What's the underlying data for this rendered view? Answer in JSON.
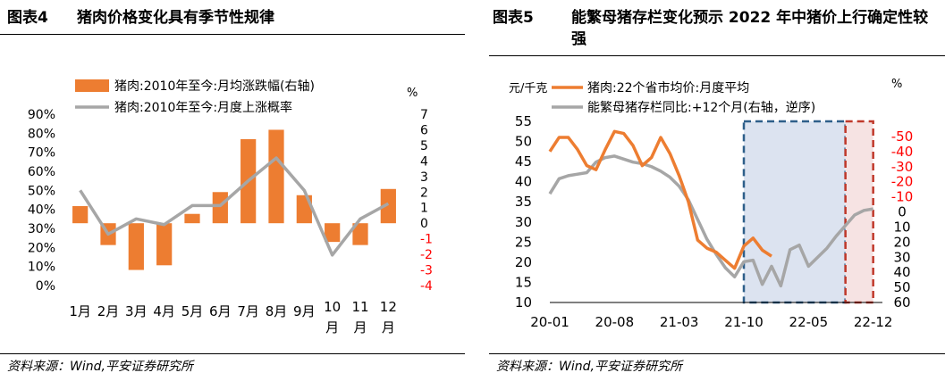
{
  "left": {
    "fig_label": "图表4",
    "title": "猪肉价格变化具有季节性规律",
    "source": "资料来源：Wind,平安证券研究所",
    "chart_data": {
      "type": "bar",
      "categories": [
        "1月",
        "2月",
        "3月",
        "4月",
        "5月",
        "6月",
        "7月",
        "8月",
        "9月",
        "10月",
        "11月",
        "12月"
      ],
      "series": [
        {
          "name": "猪肉:2010年至今:月均涨跌幅(右轴)",
          "type": "bar",
          "axis": "right",
          "color": "#ED7D31",
          "values": [
            1.1,
            -1.4,
            -3.0,
            -2.7,
            0.6,
            2.0,
            5.4,
            6.0,
            1.8,
            -1.2,
            -1.4,
            2.2
          ]
        },
        {
          "name": "猪肉:2010年至今:月度上涨概率",
          "type": "line",
          "axis": "left",
          "color": "#A6A6A6",
          "values": [
            50,
            27,
            35,
            32,
            42,
            42,
            55,
            67,
            50,
            16,
            35,
            43
          ]
        }
      ],
      "left_axis": {
        "min": 0,
        "max": 90,
        "step": 10,
        "format": "percent",
        "ticks": [
          "0%",
          "10%",
          "20%",
          "30%",
          "40%",
          "50%",
          "60%",
          "70%",
          "80%",
          "90%"
        ]
      },
      "right_axis": {
        "min": -4,
        "max": 7,
        "step": 1,
        "unit_label": "%",
        "ticks": [
          "-4",
          "-3",
          "-2",
          "-1",
          "0",
          "1",
          "2",
          "3",
          "4",
          "5",
          "6",
          "7"
        ],
        "negative_color": "#FF0000"
      },
      "legend_position": "top"
    }
  },
  "right": {
    "fig_label": "图表5",
    "title": "能繁母猪存栏变化预示 2022 年中猪价上行确定性较强",
    "source": "资料来源：Wind,平安证券研究所",
    "chart_data": {
      "type": "line",
      "x_ticks": [
        "20-01",
        "20-08",
        "21-03",
        "21-10",
        "22-05",
        "22-12"
      ],
      "left_unit": "元/千克",
      "right_unit": "%",
      "series": [
        {
          "name": "猪肉:22个省市均价:月度平均",
          "axis": "left",
          "color": "#ED7D31",
          "x": [
            "20-01",
            "20-02",
            "20-03",
            "20-04",
            "20-05",
            "20-06",
            "20-07",
            "20-08",
            "20-09",
            "20-10",
            "20-11",
            "20-12",
            "21-01",
            "21-02",
            "21-03",
            "21-04",
            "21-05",
            "21-06",
            "21-07",
            "21-08",
            "21-09",
            "21-10",
            "21-11",
            "21-12",
            "22-01",
            "22-02"
          ],
          "y": [
            47.5,
            51,
            51,
            48,
            44,
            43,
            48,
            52.5,
            52,
            49,
            44,
            46,
            51,
            47,
            41.5,
            35,
            25.5,
            23.5,
            22.5,
            20.5,
            18.5,
            24,
            26,
            23,
            21.5,
            null
          ]
        },
        {
          "name": "能繁母猪存栏同比:+12个月(右轴，逆序)",
          "axis": "right",
          "inverted": true,
          "color": "#A6A6A6",
          "x": [
            "20-01",
            "20-02",
            "20-03",
            "20-04",
            "20-05",
            "20-06",
            "20-07",
            "20-08",
            "20-09",
            "20-10",
            "20-11",
            "20-12",
            "21-01",
            "21-02",
            "21-03",
            "21-04",
            "21-05",
            "21-06",
            "21-07",
            "21-08",
            "21-09",
            "21-10",
            "21-11",
            "21-12",
            "22-01",
            "22-02",
            "22-03",
            "22-04",
            "22-05",
            "22-06",
            "22-07",
            "22-08",
            "22-09",
            "22-10",
            "22-11",
            "22-12"
          ],
          "y": [
            -12,
            -22,
            -24,
            -25,
            -26,
            -33,
            -36,
            -37,
            -35,
            -33,
            -32,
            -30,
            -27,
            -23,
            -17,
            -8,
            5,
            18,
            28,
            37,
            43,
            33,
            32,
            48,
            36,
            49,
            25,
            22,
            36,
            30,
            24,
            16,
            9,
            2,
            -1,
            -2
          ]
        }
      ],
      "left_axis": {
        "min": 10,
        "max": 55,
        "step": 5,
        "ticks": [
          "10",
          "15",
          "20",
          "25",
          "30",
          "35",
          "40",
          "45",
          "50",
          "55"
        ]
      },
      "right_axis": {
        "min": -60,
        "max": 60,
        "step": 10,
        "inverted": true,
        "ticks": [
          "-50",
          "-40",
          "-30",
          "-20",
          "-10",
          "0",
          "10",
          "20",
          "30",
          "40",
          "50",
          "60"
        ],
        "negative_color": "#FF0000"
      },
      "shaded_regions": [
        {
          "x_start": "21-10",
          "x_end": "22-09",
          "fill": "#DCE3F0",
          "border": "#2E5F8A",
          "style": "dashed"
        },
        {
          "x_start": "22-09",
          "x_end": "22-12",
          "fill": "#F6E3E3",
          "border": "#C0392B",
          "style": "dashed"
        }
      ],
      "legend_position": "top"
    }
  }
}
